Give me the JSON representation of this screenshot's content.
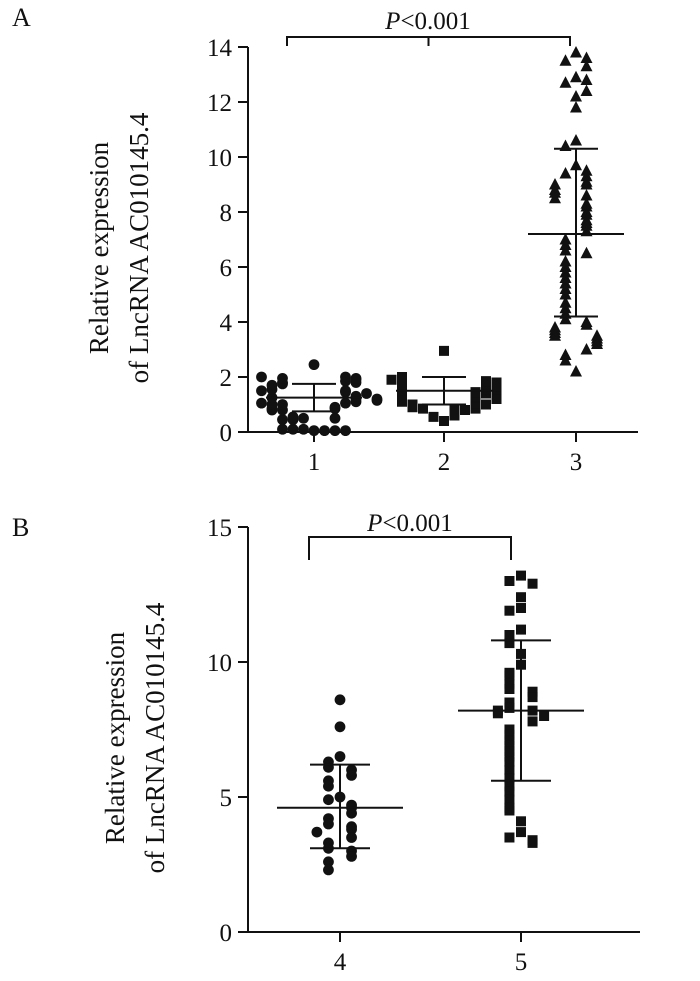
{
  "colors": {
    "ink": "#111111",
    "background": "#ffffff"
  },
  "chart_data": [
    {
      "type": "scatter",
      "panel_label": "A",
      "ylabel_line1": "Relative expression",
      "ylabel_line2": "of LncRNA AC010145.4",
      "ylim": [
        0,
        14
      ],
      "yticks": [
        0,
        2,
        4,
        6,
        8,
        10,
        12,
        14
      ],
      "categories": [
        "1",
        "2",
        "3"
      ],
      "significance": {
        "p_prefix": "P",
        "p_text": "<0.001",
        "from": 0,
        "to": 2
      },
      "groups": [
        {
          "name": "1",
          "marker": "circle",
          "mean": 1.25,
          "sd_low": 0.75,
          "sd_high": 1.75,
          "values": [
            0.05,
            0.1,
            0.05,
            0.1,
            0.05,
            0.1,
            0.05,
            0.45,
            0.5,
            0.45,
            0.55,
            0.5,
            0.8,
            0.85,
            0.8,
            0.9,
            0.85,
            1.0,
            1.05,
            1.0,
            1.1,
            1.05,
            1.2,
            1.25,
            1.15,
            1.3,
            1.2,
            1.45,
            1.5,
            1.4,
            1.55,
            1.5,
            1.75,
            1.8,
            1.7,
            1.85,
            1.8,
            1.95,
            2.0,
            1.9,
            1.95,
            2.0,
            2.45
          ]
        },
        {
          "name": "2",
          "marker": "square",
          "mean": 1.5,
          "sd_low": 1.0,
          "sd_high": 2.0,
          "values": [
            0.4,
            0.55,
            0.6,
            0.8,
            0.85,
            0.8,
            0.9,
            0.85,
            1.0,
            1.05,
            1.1,
            1.0,
            1.2,
            1.25,
            1.3,
            1.2,
            1.4,
            1.45,
            1.4,
            1.5,
            1.55,
            1.6,
            1.55,
            1.7,
            1.75,
            1.65,
            1.8,
            1.85,
            1.8,
            1.9,
            2.0,
            2.95
          ]
        },
        {
          "name": "3",
          "marker": "triangle",
          "mean": 7.2,
          "sd_low": 4.2,
          "sd_high": 10.3,
          "values": [
            13.8,
            13.5,
            13.6,
            13.3,
            12.9,
            12.7,
            12.8,
            12.2,
            12.4,
            11.8,
            10.6,
            10.4,
            9.7,
            9.4,
            9.5,
            9.3,
            9.1,
            9.0,
            9.0,
            8.8,
            8.7,
            8.6,
            8.5,
            8.3,
            8.2,
            8.0,
            7.9,
            7.7,
            7.6,
            7.5,
            7.3,
            7.0,
            6.8,
            6.6,
            6.5,
            6.2,
            6.0,
            5.8,
            5.6,
            5.4,
            5.2,
            5.0,
            4.7,
            4.5,
            4.3,
            4.1,
            4.0,
            3.9,
            3.8,
            3.7,
            3.6,
            3.5,
            3.5,
            3.4,
            3.3,
            3.2,
            3.0,
            2.8,
            2.6,
            2.2
          ]
        }
      ]
    },
    {
      "type": "scatter",
      "panel_label": "B",
      "ylabel_line1": "Relative expression",
      "ylabel_line2": "of LncRNA AC010145.4",
      "ylim": [
        0,
        15
      ],
      "yticks": [
        0,
        5,
        10,
        15
      ],
      "categories": [
        "4",
        "5"
      ],
      "significance": {
        "p_prefix": "P",
        "p_text": "<0.001",
        "from": 0,
        "to": 1
      },
      "groups": [
        {
          "name": "4",
          "marker": "circle",
          "mean": 4.6,
          "sd_low": 3.1,
          "sd_high": 6.2,
          "values": [
            8.6,
            7.6,
            6.5,
            6.3,
            6.1,
            6.0,
            5.8,
            5.6,
            5.4,
            5.0,
            4.9,
            4.7,
            4.6,
            4.4,
            4.2,
            4.0,
            3.9,
            3.8,
            3.7,
            3.5,
            3.3,
            3.1,
            3.0,
            2.8,
            2.6,
            2.3
          ]
        },
        {
          "name": "5",
          "marker": "square",
          "mean": 8.2,
          "sd_low": 5.6,
          "sd_high": 10.8,
          "values": [
            13.2,
            13.0,
            12.9,
            12.4,
            12.0,
            11.9,
            11.2,
            11.0,
            10.7,
            10.3,
            9.9,
            9.6,
            9.5,
            9.2,
            9.0,
            8.9,
            8.7,
            8.5,
            8.3,
            8.2,
            8.2,
            8.1,
            8.0,
            7.8,
            7.5,
            7.3,
            7.1,
            6.9,
            6.7,
            6.5,
            6.3,
            6.0,
            5.7,
            5.4,
            5.2,
            4.9,
            4.6,
            4.5,
            4.1,
            3.7,
            3.5,
            3.4,
            3.3
          ]
        }
      ]
    }
  ]
}
